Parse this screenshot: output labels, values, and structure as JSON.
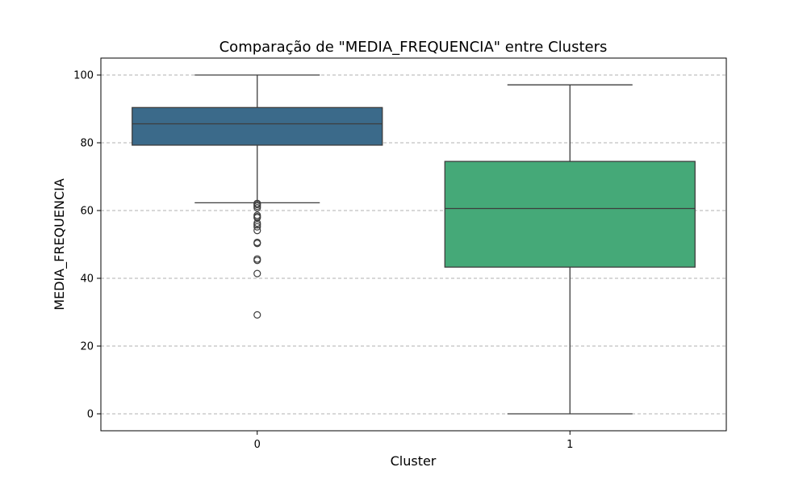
{
  "chart_data": {
    "type": "box",
    "title": "Comparação de \"MEDIA_FREQUENCIA\" entre Clusters",
    "xlabel": "Cluster",
    "ylabel": "MEDIA_FREQUENCIA",
    "ylim": [
      -5,
      105
    ],
    "yticks": [
      0,
      20,
      40,
      60,
      80,
      100
    ],
    "grid": "y-dashed",
    "categories": [
      "0",
      "1"
    ],
    "boxes": [
      {
        "category": "0",
        "color": "#3b6a8a",
        "whisker_low": 62.3,
        "q1": 79.3,
        "median": 85.6,
        "q3": 90.4,
        "whisker_high": 100,
        "outliers": [
          62.1,
          61.8,
          61.3,
          60.8,
          58.6,
          58.2,
          57.9,
          56.3,
          55.8,
          55.2,
          54.1,
          50.6,
          50.3,
          45.7,
          45.3,
          41.4,
          29.2
        ]
      },
      {
        "category": "1",
        "color": "#45a978",
        "whisker_low": 0,
        "q1": 43.3,
        "median": 60.6,
        "q3": 74.5,
        "whisker_high": 97.1,
        "outliers": []
      }
    ]
  }
}
